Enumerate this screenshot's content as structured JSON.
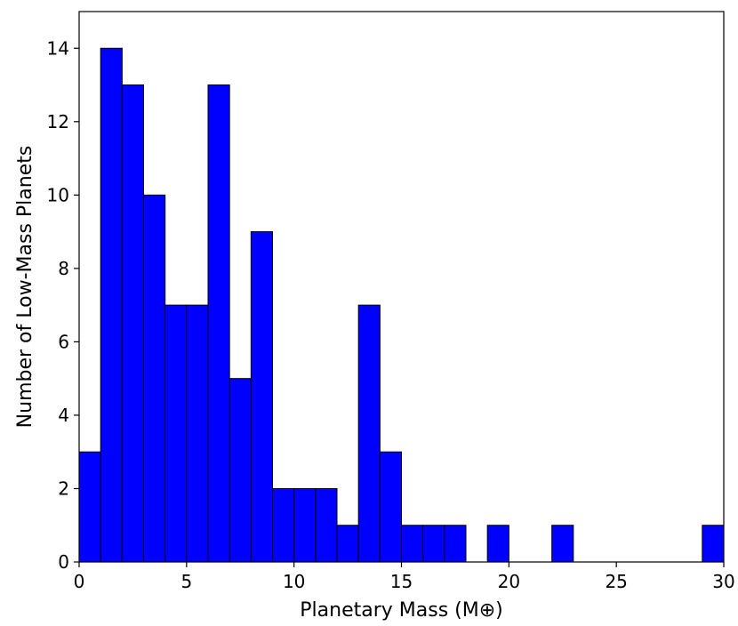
{
  "chart_data": {
    "type": "bar",
    "subtype": "histogram",
    "title": "",
    "xlabel": "Planetary Mass (M⊕)",
    "ylabel": "Number of Low-Mass Planets",
    "xlim": [
      0,
      30
    ],
    "ylim": [
      0,
      15
    ],
    "xticks": [
      0,
      5,
      10,
      15,
      20,
      25,
      30
    ],
    "yticks": [
      0,
      2,
      4,
      6,
      8,
      10,
      12,
      14
    ],
    "bin_width": 1,
    "bin_starts": [
      0,
      1,
      2,
      3,
      4,
      5,
      6,
      7,
      8,
      9,
      10,
      11,
      12,
      13,
      14,
      15,
      16,
      17,
      18,
      19,
      20,
      21,
      22,
      23,
      24,
      25,
      26,
      27,
      28,
      29
    ],
    "values": [
      3,
      14,
      13,
      10,
      7,
      7,
      13,
      5,
      9,
      2,
      2,
      2,
      1,
      7,
      3,
      1,
      1,
      1,
      0,
      1,
      0,
      0,
      1,
      0,
      0,
      0,
      0,
      0,
      0,
      1
    ],
    "bar_color": "#0000ff",
    "edge_color": "#000000",
    "grid": false,
    "legend": "none"
  }
}
